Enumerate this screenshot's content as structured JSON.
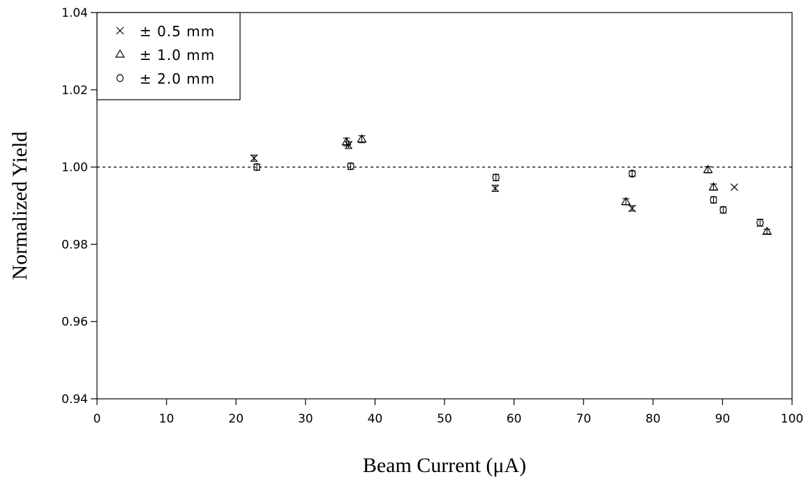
{
  "chart_data": {
    "type": "scatter",
    "title": "",
    "xlabel": "Beam Current (μA)",
    "ylabel": "Normalized Yield",
    "xlim": [
      0,
      100
    ],
    "ylim": [
      0.94,
      1.04
    ],
    "x_ticks": [
      "0",
      "10",
      "20",
      "30",
      "40",
      "50",
      "60",
      "70",
      "80",
      "90",
      "100"
    ],
    "y_ticks": [
      "0.94",
      "0.96",
      "0.98",
      "1.00",
      "1.02",
      "1.04"
    ],
    "reference_line": 1.0,
    "grid": false,
    "legend_position": "top-left",
    "series": [
      {
        "name": "± 0.5 mm",
        "marker": "x",
        "points": [
          {
            "x": 22.6,
            "y": 1.0023,
            "err": 0.0008
          },
          {
            "x": 36.2,
            "y": 1.0057,
            "err": 0.0009
          },
          {
            "x": 57.3,
            "y": 0.9945,
            "err": 0.0008
          },
          {
            "x": 77.0,
            "y": 0.9893,
            "err": 0.0007
          },
          {
            "x": 91.7,
            "y": 0.9948,
            "err": 0.0
          }
        ]
      },
      {
        "name": "± 1.0 mm",
        "marker": "triangle",
        "points": [
          {
            "x": 35.9,
            "y": 1.0065,
            "err": 0.001
          },
          {
            "x": 38.1,
            "y": 1.0072,
            "err": 0.0009
          },
          {
            "x": 76.1,
            "y": 0.991,
            "err": 0.0008
          },
          {
            "x": 87.9,
            "y": 0.9993,
            "err": 0.0008
          },
          {
            "x": 88.7,
            "y": 0.9948,
            "err": 0.0008
          },
          {
            "x": 96.4,
            "y": 0.9833,
            "err": 0.0006
          }
        ]
      },
      {
        "name": "± 2.0 mm",
        "marker": "circle",
        "points": [
          {
            "x": 23.0,
            "y": 1.0,
            "err": 0.0008
          },
          {
            "x": 36.5,
            "y": 1.0002,
            "err": 0.0008
          },
          {
            "x": 57.4,
            "y": 0.9973,
            "err": 0.0008
          },
          {
            "x": 77.0,
            "y": 0.9983,
            "err": 0.0007
          },
          {
            "x": 88.7,
            "y": 0.9915,
            "err": 0.0008
          },
          {
            "x": 90.1,
            "y": 0.9889,
            "err": 0.0008
          },
          {
            "x": 95.4,
            "y": 0.9856,
            "err": 0.0009
          }
        ]
      }
    ]
  }
}
